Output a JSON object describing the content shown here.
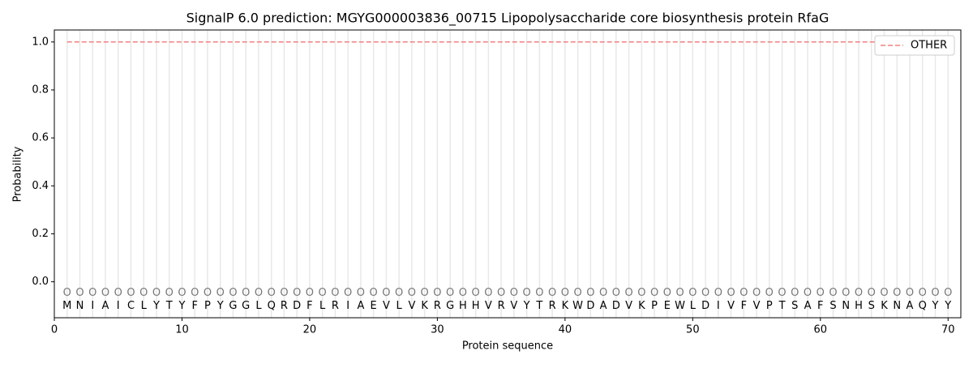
{
  "chart_data": {
    "type": "line",
    "title": "SignalP 6.0 prediction: MGYG000003836_00715 Lipopolysaccharide core biosynthesis protein RfaG",
    "x_label": "Protein sequence",
    "y_label": "Probability",
    "x": [
      1,
      2,
      3,
      4,
      5,
      6,
      7,
      8,
      9,
      10,
      11,
      12,
      13,
      14,
      15,
      16,
      17,
      18,
      19,
      20,
      21,
      22,
      23,
      24,
      25,
      26,
      27,
      28,
      29,
      30,
      31,
      32,
      33,
      34,
      35,
      36,
      37,
      38,
      39,
      40,
      41,
      42,
      43,
      44,
      45,
      46,
      47,
      48,
      49,
      50,
      51,
      52,
      53,
      54,
      55,
      56,
      57,
      58,
      59,
      60,
      61,
      62,
      63,
      64,
      65,
      66,
      67,
      68,
      69,
      70
    ],
    "residues": [
      "M",
      "N",
      "I",
      "A",
      "I",
      "C",
      "L",
      "Y",
      "T",
      "Y",
      "F",
      "P",
      "Y",
      "G",
      "G",
      "L",
      "Q",
      "R",
      "D",
      "F",
      "L",
      "R",
      "I",
      "A",
      "E",
      "V",
      "L",
      "V",
      "K",
      "R",
      "G",
      "H",
      "H",
      "V",
      "R",
      "V",
      "Y",
      "T",
      "R",
      "K",
      "W",
      "D",
      "A",
      "D",
      "V",
      "K",
      "P",
      "E",
      "W",
      "L",
      "D",
      "I",
      "V",
      "F",
      "V",
      "P",
      "T",
      "S",
      "A",
      "F",
      "S",
      "N",
      "H",
      "S",
      "K",
      "N",
      "A",
      "Q",
      "Y",
      "Y"
    ],
    "predicted_labels": [
      "O",
      "O",
      "O",
      "O",
      "O",
      "O",
      "O",
      "O",
      "O",
      "O",
      "O",
      "O",
      "O",
      "O",
      "O",
      "O",
      "O",
      "O",
      "O",
      "O",
      "O",
      "O",
      "O",
      "O",
      "O",
      "O",
      "O",
      "O",
      "O",
      "O",
      "O",
      "O",
      "O",
      "O",
      "O",
      "O",
      "O",
      "O",
      "O",
      "O",
      "O",
      "O",
      "O",
      "O",
      "O",
      "O",
      "O",
      "O",
      "O",
      "O",
      "O",
      "O",
      "O",
      "O",
      "O",
      "O",
      "O",
      "O",
      "O",
      "O",
      "O",
      "O",
      "O",
      "O",
      "O",
      "O",
      "O",
      "O",
      "O",
      "O"
    ],
    "series": [
      {
        "name": "OTHER",
        "color": "#f08080",
        "dash": true,
        "values": [
          1,
          1,
          1,
          1,
          1,
          1,
          1,
          1,
          1,
          1,
          1,
          1,
          1,
          1,
          1,
          1,
          1,
          1,
          1,
          1,
          1,
          1,
          1,
          1,
          1,
          1,
          1,
          1,
          1,
          1,
          1,
          1,
          1,
          1,
          1,
          1,
          1,
          1,
          1,
          1,
          1,
          1,
          1,
          1,
          1,
          1,
          1,
          1,
          1,
          1,
          1,
          1,
          1,
          1,
          1,
          1,
          1,
          1,
          1,
          1,
          1,
          1,
          1,
          1,
          1,
          1,
          1,
          1,
          1,
          1
        ]
      }
    ],
    "xlim": [
      0,
      71
    ],
    "ylim": [
      -0.15,
      1.05
    ],
    "xticks": [
      0,
      10,
      20,
      30,
      40,
      50,
      60,
      70
    ],
    "yticks": [
      {
        "value": 0,
        "label": "0.0"
      },
      {
        "value": 0.2,
        "label": "0.2"
      },
      {
        "value": 0.4,
        "label": "0.4"
      },
      {
        "value": 0.6,
        "label": "0.6"
      },
      {
        "value": 0.8,
        "label": "0.8"
      },
      {
        "value": 1,
        "label": "1.0"
      }
    ],
    "legend": "upper right"
  }
}
